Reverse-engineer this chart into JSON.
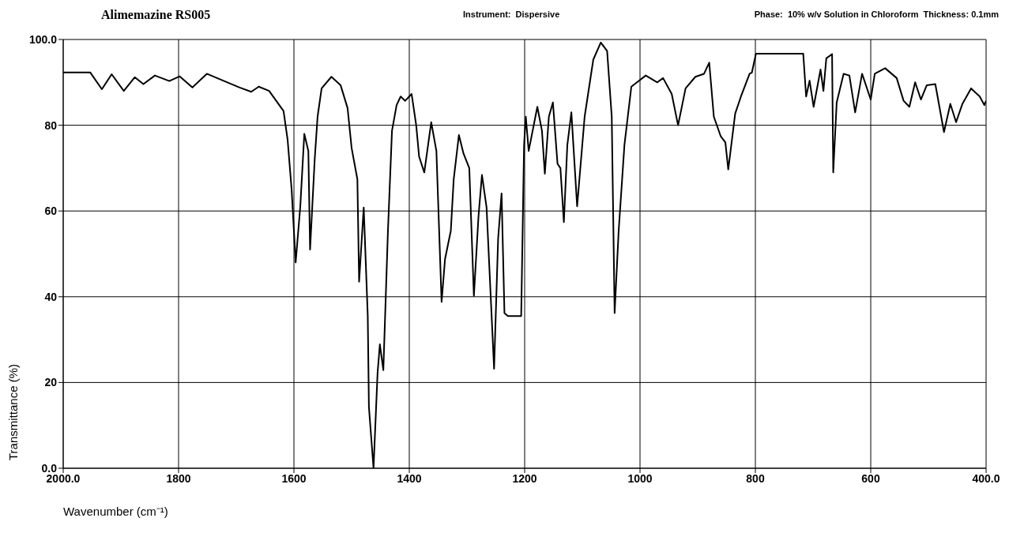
{
  "chart_data": {
    "type": "line",
    "title": "Alimemazine RS005",
    "annotations": [
      "Instrument:  Dispersive",
      "Phase:  10% w/v Solution in Chloroform  Thickness: 0.1mm"
    ],
    "xlabel": "Wavenumber (cm⁻¹)",
    "ylabel": "Transmittance (%)",
    "xlim": [
      2000,
      400
    ],
    "xticks": [
      {
        "value": 2000,
        "label": "2000.0"
      },
      1800,
      1600,
      1400,
      1200,
      1000,
      800,
      600,
      {
        "value": 400,
        "label": "400.0"
      }
    ],
    "ylim": [
      0,
      100
    ],
    "yticks": [
      {
        "value": 0,
        "label": "0.0"
      },
      20,
      40,
      60,
      80,
      {
        "value": 100,
        "label": "100.0"
      }
    ],
    "grid": true,
    "x": [
      2000,
      1953,
      1933,
      1916,
      1895,
      1876,
      1861,
      1841,
      1816,
      1798,
      1776,
      1751,
      1721,
      1694,
      1674,
      1661,
      1643,
      1618,
      1611,
      1604,
      1597,
      1589,
      1582,
      1575,
      1572,
      1564,
      1559,
      1552,
      1535,
      1519,
      1507,
      1500,
      1490,
      1487,
      1479,
      1472,
      1470,
      1462,
      1455,
      1451,
      1445,
      1437,
      1430,
      1422,
      1415,
      1407,
      1396,
      1388,
      1383,
      1374,
      1362,
      1353,
      1344,
      1338,
      1328,
      1323,
      1314,
      1306,
      1296,
      1288,
      1280,
      1274,
      1266,
      1253,
      1246,
      1240,
      1235,
      1229,
      1206,
      1201,
      1198,
      1193,
      1178,
      1170,
      1165,
      1158,
      1151,
      1143,
      1138,
      1132,
      1126,
      1119,
      1109,
      1096,
      1081,
      1068,
      1057,
      1049,
      1044,
      1037,
      1027,
      1015,
      990,
      970,
      960,
      945,
      934,
      921,
      904,
      889,
      880,
      872,
      860,
      852,
      847,
      835,
      825,
      810,
      806,
      799,
      717,
      712,
      706,
      699,
      687,
      682,
      677,
      667,
      665,
      659,
      647,
      637,
      627,
      615,
      600,
      593,
      575,
      555,
      543,
      533,
      523,
      513,
      503,
      488,
      473,
      462,
      452,
      441,
      426,
      411,
      403,
      400
    ],
    "series": [
      {
        "color": "#000000",
        "values": [
          92.3,
          92.3,
          88.4,
          91.9,
          88,
          91.2,
          89.6,
          91.6,
          90.3,
          91.4,
          88.8,
          92,
          90.3,
          88.8,
          87.8,
          89,
          88,
          83.3,
          76.7,
          65,
          48,
          61,
          78,
          74,
          51,
          72,
          82,
          88.6,
          91.3,
          89.3,
          84,
          74.7,
          67.4,
          43.5,
          60.8,
          35.5,
          14.3,
          0,
          22.2,
          28.9,
          22.9,
          55.4,
          78.7,
          84.7,
          86.7,
          85.7,
          87.3,
          80,
          72.7,
          69,
          80.7,
          74,
          38.8,
          48.8,
          55.4,
          67.4,
          77.7,
          73.4,
          70,
          40.2,
          58.8,
          68.4,
          60.8,
          23.2,
          53.5,
          64.1,
          36.2,
          35.5,
          35.5,
          75.4,
          82,
          74,
          84.3,
          78.7,
          68.7,
          82,
          85.3,
          71,
          70,
          57.4,
          75.4,
          83,
          61.1,
          82,
          95.3,
          99.3,
          97.3,
          82,
          36.2,
          55.4,
          75.4,
          89,
          91.6,
          90,
          91,
          87.3,
          80,
          88.6,
          91.3,
          92,
          94.6,
          82,
          77.4,
          76,
          69.7,
          82.7,
          86.7,
          92,
          92.3,
          96.7,
          96.7,
          86.7,
          90.4,
          84.3,
          93,
          88,
          95.6,
          96.6,
          69,
          85.3,
          92,
          91.6,
          83,
          92,
          86,
          92,
          93.3,
          91,
          85.7,
          84.3,
          90,
          86,
          89.3,
          89.6,
          78.4,
          85,
          80.7,
          85,
          88.6,
          86.7,
          84.7,
          85.7
        ]
      }
    ]
  }
}
